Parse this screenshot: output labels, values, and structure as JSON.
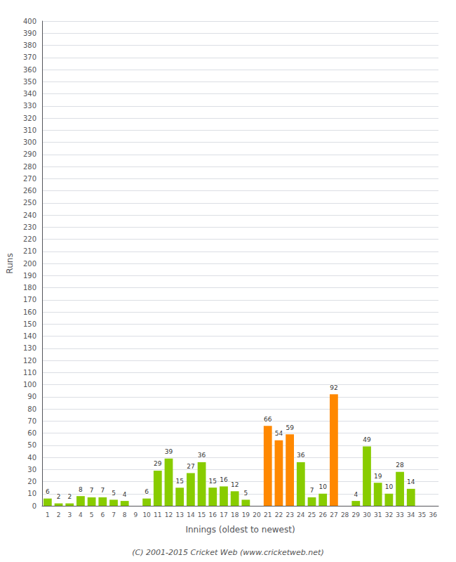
{
  "chart_data": {
    "type": "bar",
    "xlabel": "Innings (oldest to newest)",
    "ylabel": "Runs",
    "categories": [
      "1",
      "2",
      "3",
      "4",
      "5",
      "6",
      "7",
      "8",
      "9",
      "10",
      "11",
      "12",
      "13",
      "14",
      "15",
      "16",
      "17",
      "18",
      "19",
      "20",
      "21",
      "22",
      "23",
      "24",
      "25",
      "26",
      "27",
      "28",
      "29",
      "30",
      "31",
      "32",
      "33",
      "34",
      "35",
      "36"
    ],
    "values": [
      6,
      2,
      2,
      8,
      7,
      7,
      5,
      4,
      0,
      6,
      29,
      39,
      15,
      27,
      36,
      15,
      16,
      12,
      5,
      0,
      66,
      54,
      59,
      36,
      7,
      10,
      92,
      0,
      4,
      49,
      19,
      10,
      28,
      14,
      0,
      0
    ],
    "value_labels": [
      "6",
      "2",
      "2",
      "8",
      "7",
      "7",
      "5",
      "4",
      null,
      "6",
      "29",
      "39",
      "15",
      "27",
      "36",
      "15",
      "16",
      "12",
      "5",
      null,
      "66",
      "54",
      "59",
      "36",
      "7",
      "10",
      "92",
      null,
      "4",
      "49",
      "19",
      "10",
      "28",
      "14",
      null,
      null
    ],
    "data_labels": true,
    "colors": [
      "#88cc00",
      "#88cc00",
      "#88cc00",
      "#88cc00",
      "#88cc00",
      "#88cc00",
      "#88cc00",
      "#88cc00",
      "#88cc00",
      "#88cc00",
      "#88cc00",
      "#88cc00",
      "#88cc00",
      "#88cc00",
      "#88cc00",
      "#88cc00",
      "#88cc00",
      "#88cc00",
      "#88cc00",
      "#88cc00",
      "#ff8800",
      "#ff8800",
      "#ff8800",
      "#88cc00",
      "#88cc00",
      "#88cc00",
      "#ff8800",
      "#88cc00",
      "#88cc00",
      "#88cc00",
      "#88cc00",
      "#88cc00",
      "#88cc00",
      "#88cc00",
      "#88cc00",
      "#88cc00"
    ],
    "ylim": [
      0,
      400
    ],
    "yticks": [
      0,
      10,
      20,
      30,
      40,
      50,
      60,
      70,
      80,
      90,
      100,
      110,
      120,
      130,
      140,
      150,
      160,
      170,
      180,
      190,
      200,
      210,
      220,
      230,
      240,
      250,
      260,
      270,
      280,
      290,
      300,
      310,
      320,
      330,
      340,
      350,
      360,
      370,
      380,
      390,
      400
    ],
    "grid": true,
    "annotations": [
      "(C) 2001-2015 Cricket Web (www.cricketweb.net)"
    ]
  }
}
